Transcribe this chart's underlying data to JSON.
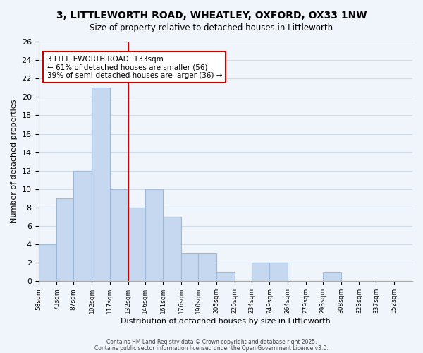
{
  "title_line1": "3, LITTLEWORTH ROAD, WHEATLEY, OXFORD, OX33 1NW",
  "title_line2": "Size of property relative to detached houses in Littleworth",
  "bar_values": [
    4,
    9,
    12,
    21,
    10,
    8,
    10,
    7,
    3,
    3,
    1,
    0,
    2,
    2,
    0,
    0,
    1
  ],
  "bin_edges": [
    58,
    73,
    87,
    102,
    117,
    132,
    146,
    161,
    176,
    190,
    205,
    220,
    234,
    249,
    264,
    279,
    293,
    308,
    323,
    337,
    352,
    367
  ],
  "bin_labels": [
    "58sqm",
    "73sqm",
    "87sqm",
    "102sqm",
    "117sqm",
    "132sqm",
    "146sqm",
    "161sqm",
    "176sqm",
    "190sqm",
    "205sqm",
    "220sqm",
    "234sqm",
    "249sqm",
    "264sqm",
    "279sqm",
    "293sqm",
    "308sqm",
    "323sqm",
    "337sqm",
    "352sqm"
  ],
  "bar_color": "#c5d8f0",
  "bar_edge_color": "#a0b8d8",
  "vline_x": 132,
  "vline_color": "#cc0000",
  "ylabel": "Number of detached properties",
  "xlabel": "Distribution of detached houses by size in Littleworth",
  "ylim": [
    0,
    26
  ],
  "yticks": [
    0,
    2,
    4,
    6,
    8,
    10,
    12,
    14,
    16,
    18,
    20,
    22,
    24,
    26
  ],
  "annotation_line1": "3 LITTLEWORTH ROAD: 133sqm",
  "annotation_line2": "← 61% of detached houses are smaller (56)",
  "annotation_line3": "39% of semi-detached houses are larger (36) →",
  "annotation_box_color": "#ffffff",
  "annotation_box_edge": "#cc0000",
  "grid_color": "#d0dce8",
  "background_color": "#f0f5fb",
  "footer_line1": "Contains HM Land Registry data © Crown copyright and database right 2025.",
  "footer_line2": "Contains public sector information licensed under the Open Government Licence v3.0."
}
